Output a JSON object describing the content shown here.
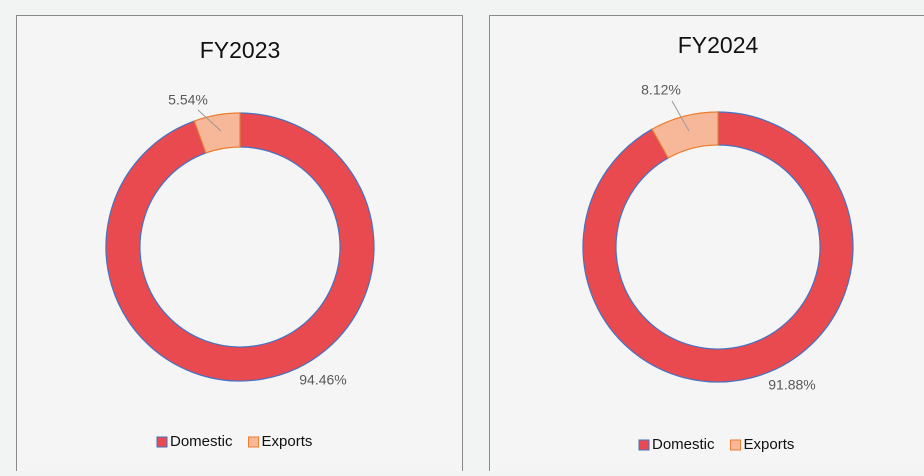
{
  "chart_data": [
    {
      "type": "pie",
      "title": "FY2023",
      "categories": [
        "Domestic",
        "Exports"
      ],
      "values": [
        94.46,
        5.54
      ],
      "value_labels": [
        "94.46%",
        "5.54%"
      ],
      "colors": [
        "#e84a50",
        "#f7b89a"
      ],
      "edge_colors": [
        "#4472c4",
        "#ed7d31"
      ],
      "donut": true,
      "legend": "bottom"
    },
    {
      "type": "pie",
      "title": "FY2024",
      "categories": [
        "Domestic",
        "Exports"
      ],
      "values": [
        91.88,
        8.12
      ],
      "value_labels": [
        "91.88%",
        "8.12%"
      ],
      "colors": [
        "#e84a50",
        "#f7b89a"
      ],
      "edge_colors": [
        "#4472c4",
        "#ed7d31"
      ],
      "donut": true,
      "legend": "bottom"
    }
  ]
}
